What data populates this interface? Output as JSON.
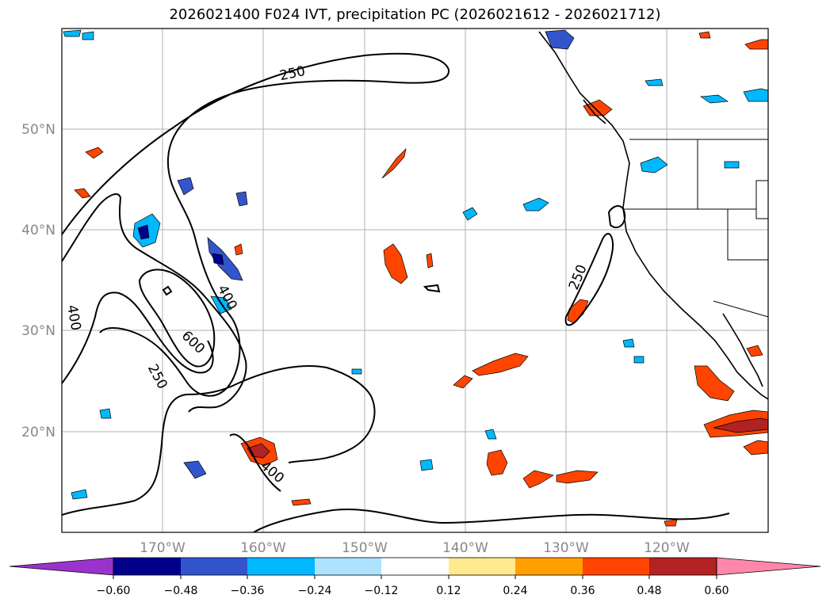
{
  "title": "2026021400 F024 IVT, precipitation PC (2026021612 - 2026021712)",
  "map": {
    "lat_ticks": [
      "50°N",
      "40°N",
      "30°N",
      "20°N"
    ],
    "lon_ticks": [
      "170°W",
      "160°W",
      "150°W",
      "140°W",
      "130°W",
      "120°W"
    ],
    "contour_labels": [
      "250",
      "400",
      "600",
      "400",
      "250",
      "250",
      "400"
    ]
  },
  "colorbar": {
    "colors": [
      "#9a33cc",
      "#00008b",
      "#3355cc",
      "#00b8ff",
      "#aee2ff",
      "#ffffff",
      "#ffea90",
      "#ffa000",
      "#ff4400",
      "#b22222",
      "#ff88aa"
    ],
    "labels": [
      "−0.60",
      "−0.48",
      "−0.36",
      "−0.24",
      "−0.12",
      "0.12",
      "0.24",
      "0.36",
      "0.48",
      "0.60"
    ]
  }
}
